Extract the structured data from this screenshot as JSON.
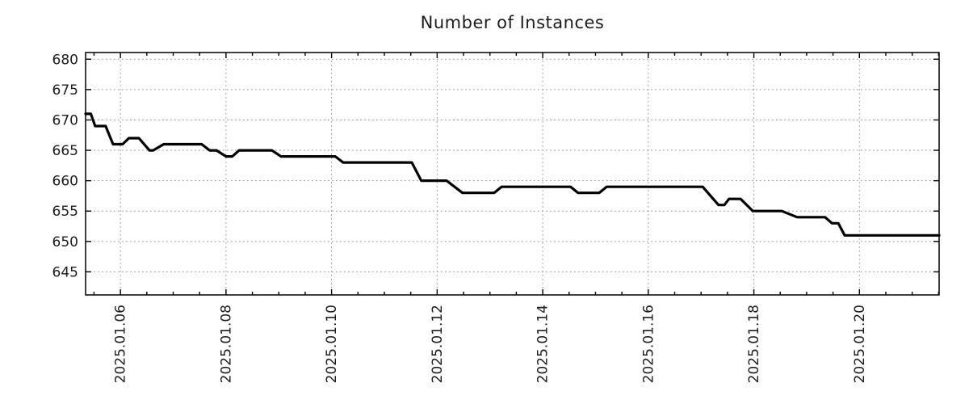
{
  "chart_data": {
    "type": "line",
    "title": "Number of Instances",
    "x_axis": {
      "tick_days": [
        6,
        8,
        10,
        12,
        14,
        16,
        18,
        20
      ],
      "tick_labels": [
        "2025.01.06",
        "2025.01.08",
        "2025.01.10",
        "2025.01.12",
        "2025.01.14",
        "2025.01.16",
        "2025.01.18",
        "2025.01.20"
      ],
      "minor_tick_step_days": 0.5,
      "range": [
        5.34,
        21.51
      ],
      "label_rotation_deg": -90,
      "grid": true
    },
    "y_axis": {
      "ticks": [
        645,
        650,
        655,
        660,
        665,
        670,
        675,
        680
      ],
      "range": [
        641.2,
        681.1
      ],
      "grid": true
    },
    "series": [
      {
        "name": "instances",
        "color": "#000000",
        "line_width": 3.2,
        "points": [
          [
            5.34,
            671
          ],
          [
            5.44,
            671
          ],
          [
            5.52,
            669
          ],
          [
            5.72,
            669
          ],
          [
            5.86,
            666
          ],
          [
            6.04,
            666
          ],
          [
            6.16,
            667
          ],
          [
            6.35,
            667
          ],
          [
            6.55,
            665
          ],
          [
            6.62,
            665
          ],
          [
            6.82,
            666
          ],
          [
            7.54,
            666
          ],
          [
            7.69,
            665
          ],
          [
            7.82,
            665
          ],
          [
            8.0,
            664
          ],
          [
            8.12,
            664
          ],
          [
            8.25,
            665
          ],
          [
            8.87,
            665
          ],
          [
            9.04,
            664
          ],
          [
            10.07,
            664
          ],
          [
            10.22,
            663
          ],
          [
            11.52,
            663
          ],
          [
            11.7,
            660
          ],
          [
            12.18,
            660
          ],
          [
            12.48,
            658
          ],
          [
            13.08,
            658
          ],
          [
            13.22,
            659
          ],
          [
            14.53,
            659
          ],
          [
            14.67,
            658
          ],
          [
            15.07,
            658
          ],
          [
            15.21,
            659
          ],
          [
            17.03,
            659
          ],
          [
            17.33,
            656
          ],
          [
            17.44,
            656
          ],
          [
            17.53,
            657
          ],
          [
            17.75,
            657
          ],
          [
            17.98,
            655
          ],
          [
            18.53,
            655
          ],
          [
            18.82,
            654
          ],
          [
            19.35,
            654
          ],
          [
            19.48,
            653
          ],
          [
            19.6,
            653
          ],
          [
            19.72,
            651
          ],
          [
            21.51,
            651
          ]
        ]
      }
    ],
    "legend": "none",
    "colors": {
      "line": "#000000",
      "grid": "#999999",
      "border": "#000000",
      "text": "#1c1c1c",
      "background": "#ffffff"
    }
  }
}
